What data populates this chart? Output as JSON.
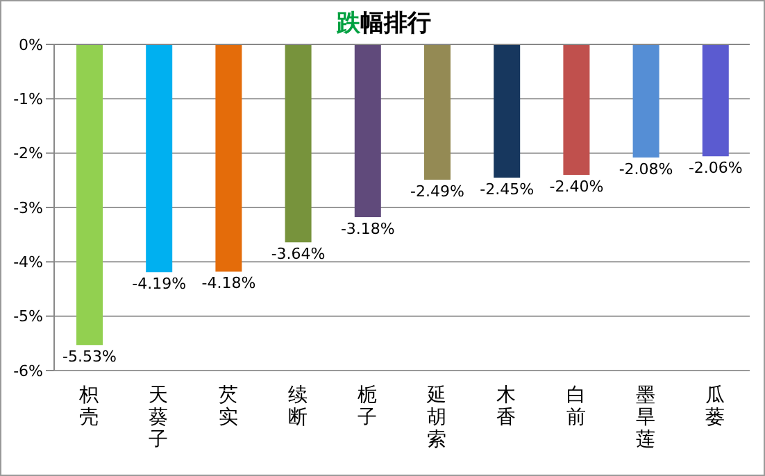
{
  "chart_data": {
    "type": "bar",
    "title": "跌幅排行",
    "categories": [
      "枳壳",
      "天葵子",
      "芡实",
      "续断",
      "栀子",
      "延胡索",
      "木香",
      "白前",
      "墨旱莲",
      "瓜蒌"
    ],
    "values": [
      -5.53,
      -4.19,
      -4.18,
      -3.64,
      -3.18,
      -2.49,
      -2.45,
      -2.4,
      -2.08,
      -2.06
    ],
    "value_labels": [
      "-5.53%",
      "-4.19%",
      "-4.18%",
      "-3.64%",
      "-3.18%",
      "-2.49%",
      "-2.45%",
      "-2.40%",
      "-2.08%",
      "-2.06%"
    ],
    "colors": [
      "#92d050",
      "#00b0f0",
      "#e46c0a",
      "#77933c",
      "#604a7b",
      "#948a54",
      "#17375e",
      "#c0504d",
      "#558ed5",
      "#5b5bd0"
    ],
    "ylim": [
      -6,
      0
    ],
    "yticks": [
      {
        "value": 0,
        "label": "0%"
      },
      {
        "value": -1,
        "label": "-1%"
      },
      {
        "value": -2,
        "label": "-2%"
      },
      {
        "value": -3,
        "label": "-3%"
      },
      {
        "value": -4,
        "label": "-4%"
      },
      {
        "value": -5,
        "label": "-5%"
      },
      {
        "value": -6,
        "label": "-6%"
      }
    ],
    "grid": "y"
  }
}
